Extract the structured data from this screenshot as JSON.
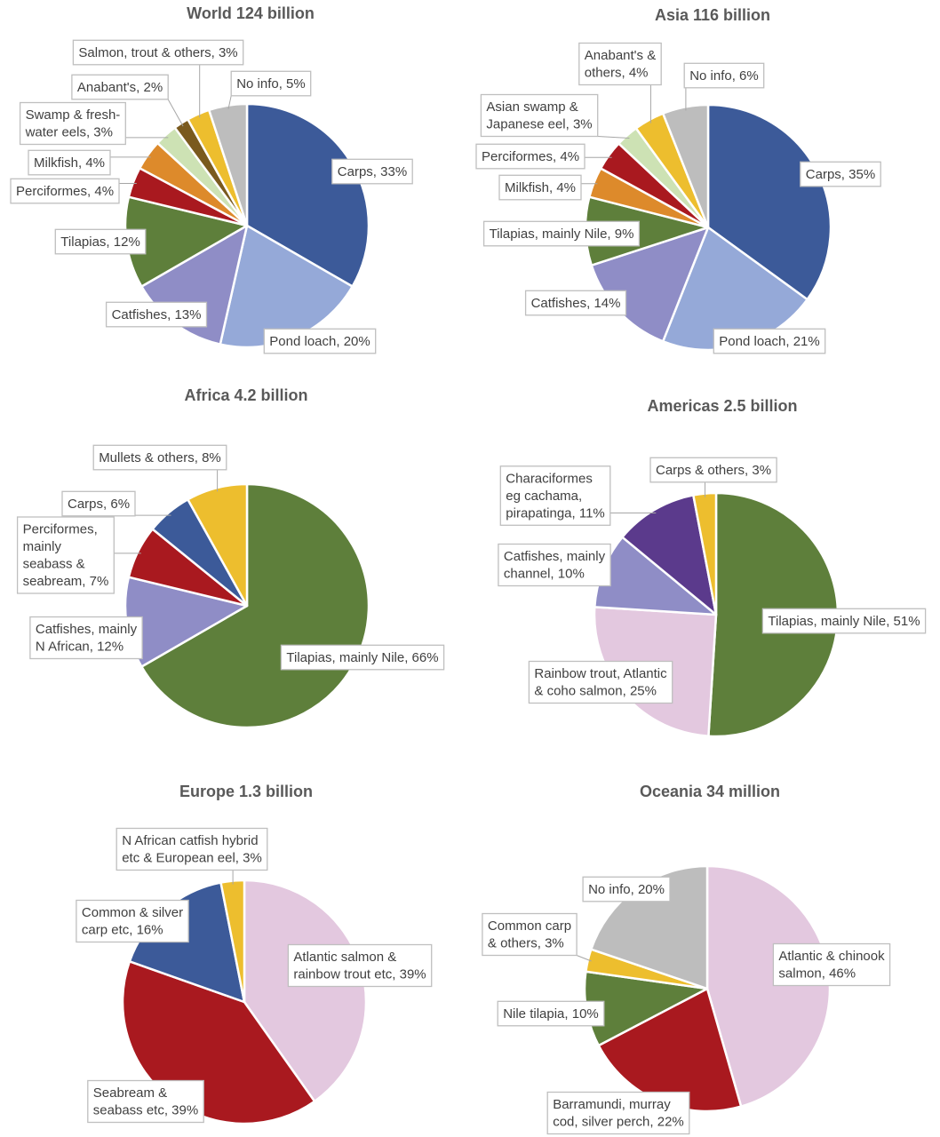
{
  "colors": {
    "carps_blue": "#3c5a99",
    "light_blue": "#95a9d8",
    "lavender": "#8f8dc6",
    "green": "#5e7f3b",
    "red": "#a9191f",
    "orange": "#dd8a2b",
    "light_green": "#cde2b4",
    "brown": "#7a5a1e",
    "yellow": "#edbe2e",
    "gray": "#bdbdbd",
    "pink": "#e3c8df",
    "purple": "#5b3a8c",
    "title_gray": "#595959",
    "label_border": "#bfbfbf"
  },
  "chart_data": [
    {
      "type": "pie",
      "title": "World 124 billion",
      "slices": [
        {
          "name": "Carps",
          "value": 33,
          "label": "Carps, 33%",
          "color": "#3c5a99"
        },
        {
          "name": "Pond loach",
          "value": 20,
          "label": "Pond loach, 20%",
          "color": "#95a9d8"
        },
        {
          "name": "Catfishes",
          "value": 13,
          "label": "Catfishes, 13%",
          "color": "#8f8dc6"
        },
        {
          "name": "Tilapias",
          "value": 12,
          "label": "Tilapias, 12%",
          "color": "#5e7f3b"
        },
        {
          "name": "Perciformes",
          "value": 4,
          "label": "Perciformes, 4%",
          "color": "#a9191f"
        },
        {
          "name": "Milkfish",
          "value": 4,
          "label": "Milkfish, 4%",
          "color": "#dd8a2b"
        },
        {
          "name": "Swamp & fresh-water eels",
          "value": 3,
          "label": "Swamp & fresh-\nwater eels, 3%",
          "color": "#cde2b4"
        },
        {
          "name": "Anabant's",
          "value": 2,
          "label": "Anabant's, 2%",
          "color": "#7a5a1e"
        },
        {
          "name": "Salmon, trout & others",
          "value": 3,
          "label": "Salmon, trout & others, 3%",
          "color": "#edbe2e"
        },
        {
          "name": "No info",
          "value": 5,
          "label": "No info, 5%",
          "color": "#bdbdbd"
        }
      ]
    },
    {
      "type": "pie",
      "title": "Asia 116 billion",
      "slices": [
        {
          "name": "Carps",
          "value": 35,
          "label": "Carps, 35%",
          "color": "#3c5a99"
        },
        {
          "name": "Pond loach",
          "value": 21,
          "label": "Pond loach, 21%",
          "color": "#95a9d8"
        },
        {
          "name": "Catfishes",
          "value": 14,
          "label": "Catfishes, 14%",
          "color": "#8f8dc6"
        },
        {
          "name": "Tilapias, mainly Nile",
          "value": 9,
          "label": "Tilapias, mainly Nile, 9%",
          "color": "#5e7f3b"
        },
        {
          "name": "Milkfish",
          "value": 4,
          "label": "Milkfish, 4%",
          "color": "#dd8a2b"
        },
        {
          "name": "Perciformes",
          "value": 4,
          "label": "Perciformes, 4%",
          "color": "#a9191f"
        },
        {
          "name": "Asian swamp & Japanese eel",
          "value": 3,
          "label": "Asian swamp &\nJapanese eel, 3%",
          "color": "#cde2b4"
        },
        {
          "name": "Anabant's & others",
          "value": 4,
          "label": "Anabant's &\nothers, 4%",
          "color": "#edbe2e"
        },
        {
          "name": "No info",
          "value": 6,
          "label": "No info, 6%",
          "color": "#bdbdbd"
        }
      ]
    },
    {
      "type": "pie",
      "title": "Africa 4.2 billion",
      "slices": [
        {
          "name": "Tilapias, mainly Nile",
          "value": 66,
          "label": "Tilapias, mainly Nile, 66%",
          "color": "#5e7f3b"
        },
        {
          "name": "Catfishes, mainly N African",
          "value": 12,
          "label": "Catfishes, mainly\nN African, 12%",
          "color": "#8f8dc6"
        },
        {
          "name": "Perciformes, mainly seabass & seabream",
          "value": 7,
          "label": "Perciformes,\nmainly\nseabass &\nseabream, 7%",
          "color": "#a9191f"
        },
        {
          "name": "Carps",
          "value": 6,
          "label": "Carps, 6%",
          "color": "#3c5a99"
        },
        {
          "name": "Mullets & others",
          "value": 8,
          "label": "Mullets & others, 8%",
          "color": "#edbe2e"
        }
      ]
    },
    {
      "type": "pie",
      "title": "Americas 2.5 billion",
      "slices": [
        {
          "name": "Tilapias, mainly Nile",
          "value": 51,
          "label": "Tilapias, mainly Nile, 51%",
          "color": "#5e7f3b"
        },
        {
          "name": "Rainbow trout, Atlantic & coho salmon",
          "value": 25,
          "label": "Rainbow trout, Atlantic\n& coho salmon, 25%",
          "color": "#e3c8df"
        },
        {
          "name": "Catfishes, mainly channel",
          "value": 10,
          "label": "Catfishes, mainly\nchannel, 10%",
          "color": "#8f8dc6"
        },
        {
          "name": "Characiformes eg cachama, pirapatinga",
          "value": 11,
          "label": "Characiformes\neg cachama,\npirapatinga, 11%",
          "color": "#5b3a8c"
        },
        {
          "name": "Carps & others",
          "value": 3,
          "label": "Carps & others, 3%",
          "color": "#edbe2e"
        }
      ]
    },
    {
      "type": "pie",
      "title": "Europe 1.3 billion",
      "slices": [
        {
          "name": "Atlantic salmon & rainbow trout etc",
          "value": 39,
          "label": "Atlantic salmon &\nrainbow trout etc, 39%",
          "color": "#e3c8df"
        },
        {
          "name": "Seabream & seabass etc",
          "value": 39,
          "label": "Seabream &\nseabass etc, 39%",
          "color": "#a9191f"
        },
        {
          "name": "Common & silver carp etc",
          "value": 16,
          "label": "Common & silver\ncarp etc, 16%",
          "color": "#3c5a99"
        },
        {
          "name": "N African catfish hybrid etc & European eel",
          "value": 3,
          "label": "N African catfish hybrid\netc & European eel, 3%",
          "color": "#edbe2e"
        }
      ]
    },
    {
      "type": "pie",
      "title": "Oceania 34 million",
      "slices": [
        {
          "name": "Atlantic & chinook salmon",
          "value": 46,
          "label": "Atlantic & chinook\nsalmon, 46%",
          "color": "#e3c8df"
        },
        {
          "name": "Barramundi, murray cod, silver perch",
          "value": 22,
          "label": "Barramundi, murray\ncod, silver perch, 22%",
          "color": "#a9191f"
        },
        {
          "name": "Nile tilapia",
          "value": 10,
          "label": "Nile tilapia, 10%",
          "color": "#5e7f3b"
        },
        {
          "name": "Common carp & others",
          "value": 3,
          "label": "Common carp\n& others, 3%",
          "color": "#edbe2e"
        },
        {
          "name": "No info",
          "value": 20,
          "label": "No info, 20%",
          "color": "#bdbdbd"
        }
      ]
    }
  ]
}
